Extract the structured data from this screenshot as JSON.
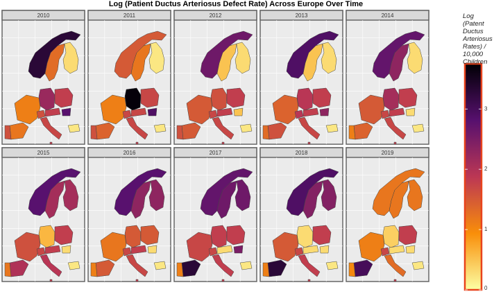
{
  "chart_data": {
    "type": "choropleth",
    "title": "Log (Patient Ductus Arteriosus Defect Rate) Across Europe Over Time",
    "colors": [
      "#fcffa4",
      "#f98e09",
      "#bc3754",
      "#57106e",
      "#000004"
    ],
    "legend": {
      "title": "Log (Patent Ductus Arteriosus Rates) / 10,000 Children",
      "lim": [
        0,
        3.75
      ],
      "ticks": [
        0,
        1,
        2,
        3
      ]
    },
    "panels": [
      {
        "label": "2010",
        "values": [
          3.3,
          1.3,
          0.3,
          2.2,
          1.8,
          1.1,
          1.6,
          1.8,
          2.8,
          1.7,
          1.2,
          1.6,
          0.2,
          1.8
        ]
      },
      {
        "label": "2011",
        "values": [
          1.5,
          1.2,
          0.2,
          3.7,
          1.7,
          1.1,
          1.7,
          1.7,
          2.9,
          1.7,
          1.4,
          1.6,
          0.2,
          1.8
        ]
      },
      {
        "label": "2012",
        "values": [
          2.6,
          0.5,
          0.3,
          1.6,
          1.8,
          1.5,
          1.7,
          1.8,
          0.5,
          1.7,
          1.5,
          1.6,
          0.2,
          1.8
        ]
      },
      {
        "label": "2013",
        "values": [
          2.9,
          0.5,
          0.3,
          1.9,
          1.8,
          1.4,
          1.9,
          1.8,
          2.3,
          1.7,
          1.6,
          1.3,
          0.2,
          1.8
        ]
      },
      {
        "label": "2014",
        "values": [
          2.7,
          2.3,
          0.3,
          2.1,
          1.8,
          1.5,
          1.7,
          1.8,
          0.3,
          1.7,
          1.4,
          1.1,
          0.2,
          1.8
        ]
      },
      {
        "label": "2015",
        "values": [
          2.8,
          2.1,
          2.1,
          0.6,
          1.8,
          1.6,
          1.7,
          1.8,
          0.3,
          1.9,
          2.0,
          1.2,
          0.2,
          1.8
        ]
      },
      {
        "label": "2016",
        "values": [
          2.8,
          2.3,
          2.3,
          1.5,
          1.5,
          1.2,
          1.7,
          1.8,
          0.3,
          1.7,
          1.5,
          1.1,
          0.2,
          1.8
        ]
      },
      {
        "label": "2017",
        "values": [
          2.7,
          2.6,
          2.6,
          1.8,
          1.8,
          1.7,
          1.7,
          0.3,
          2.5,
          1.8,
          3.3,
          1.1,
          0.2,
          1.8
        ]
      },
      {
        "label": "2018",
        "values": [
          2.9,
          2.4,
          2.4,
          0.3,
          1.8,
          1.5,
          1.7,
          0.3,
          0.3,
          1.8,
          3.3,
          1.1,
          0.2,
          1.8
        ]
      },
      {
        "label": "2019",
        "values": [
          1.2,
          1.2,
          1.2,
          0.4,
          1.8,
          1.1,
          1.7,
          0.3,
          0.3,
          1.3,
          3.0,
          1.0,
          0.2,
          1.8
        ]
      }
    ]
  }
}
